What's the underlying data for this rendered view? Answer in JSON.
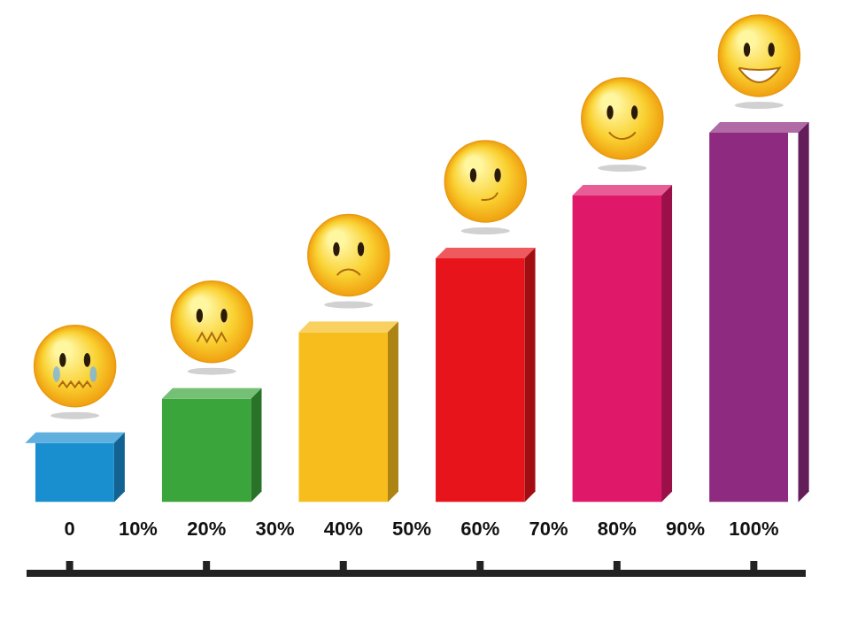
{
  "chart_data": {
    "type": "bar",
    "categories": [
      "0",
      "10%",
      "20%",
      "30%",
      "40%",
      "50%",
      "60%",
      "70%",
      "80%",
      "90%",
      "100%"
    ],
    "values": [
      16,
      null,
      28,
      null,
      46,
      null,
      66,
      null,
      83,
      null,
      100
    ],
    "colors": [
      "#1a8fd0",
      null,
      "#3aa53a",
      null,
      "#f7bd1c",
      null,
      "#e8141b",
      null,
      "#e0186a",
      null,
      "#8e2a80"
    ],
    "ylim": [
      0,
      100
    ],
    "grid": false,
    "tick_labels": "x"
  }
}
